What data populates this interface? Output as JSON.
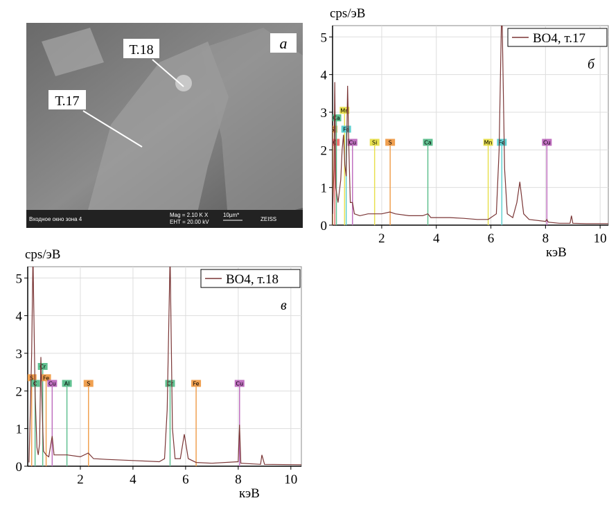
{
  "image": {
    "labels": [
      "Т.18",
      "Т.17"
    ],
    "panel": "а",
    "info": [
      "Входное окно зона 4",
      "Mag =  2.10 K X",
      "EHT = 20.00 kV",
      "10µm*",
      "ZEISS"
    ]
  },
  "chart_data": [
    {
      "type": "line",
      "panel": "б",
      "ylabel": "cps/эВ",
      "xlabel": "кэВ",
      "x": [
        0.2,
        0.25,
        0.28,
        0.32,
        0.4,
        0.5,
        0.55,
        0.6,
        0.65,
        0.7,
        0.75,
        0.8,
        0.85,
        0.93,
        1.0,
        1.2,
        1.5,
        2.0,
        2.3,
        2.5,
        3.0,
        3.5,
        3.69,
        3.8,
        4.5,
        5.0,
        5.5,
        5.9,
        6.2,
        6.3,
        6.4,
        6.5,
        6.6,
        6.8,
        6.95,
        7.06,
        7.2,
        7.4,
        8.0,
        8.05,
        8.1,
        8.5,
        8.9,
        8.95,
        9.0,
        9.5,
        10.3
      ],
      "series": [
        {
          "name": "ВО4, т.17",
          "color": "#7a3535",
          "values": [
            0.3,
            1.5,
            3.8,
            1.0,
            0.6,
            1.2,
            2.0,
            2.4,
            1.6,
            1.3,
            3.7,
            2.0,
            0.6,
            0.6,
            0.3,
            0.25,
            0.3,
            0.3,
            0.35,
            0.3,
            0.25,
            0.25,
            0.3,
            0.2,
            0.2,
            0.18,
            0.15,
            0.15,
            0.3,
            2.0,
            6.0,
            1.5,
            0.3,
            0.2,
            0.6,
            1.15,
            0.3,
            0.15,
            0.1,
            0.15,
            0.08,
            0.05,
            0.05,
            0.25,
            0.05,
            0.04,
            0.04
          ]
        }
      ],
      "markers": [
        {
          "label": "S",
          "x": 0.2,
          "height": 2.55,
          "color": "#f0a050"
        },
        {
          "label": "C",
          "x": 0.28,
          "height": 2.2,
          "color": "#f07070"
        },
        {
          "label": "Ca",
          "x": 0.34,
          "height": 2.85,
          "color": "#60c090"
        },
        {
          "label": "Mn",
          "x": 0.64,
          "height": 3.05,
          "color": "#e8e050"
        },
        {
          "label": "Fe",
          "x": 0.7,
          "height": 2.55,
          "color": "#60d0d0"
        },
        {
          "label": "Cu",
          "x": 0.93,
          "height": 2.2,
          "color": "#c070c0"
        },
        {
          "label": "Si",
          "x": 1.74,
          "height": 2.2,
          "color": "#e8e050"
        },
        {
          "label": "S",
          "x": 2.31,
          "height": 2.2,
          "color": "#f0a050"
        },
        {
          "label": "Ca",
          "x": 3.69,
          "height": 2.2,
          "color": "#60c090"
        },
        {
          "label": "Mn",
          "x": 5.9,
          "height": 2.2,
          "color": "#e8e050"
        },
        {
          "label": "Fe",
          "x": 6.4,
          "height": 2.2,
          "color": "#60d0d0"
        },
        {
          "label": "Cu",
          "x": 8.05,
          "height": 2.2,
          "color": "#c070c0"
        }
      ],
      "xlim": [
        0.2,
        10.3
      ],
      "xticks": [
        2,
        4,
        6,
        8,
        10
      ],
      "ylim": [
        0,
        5.3
      ],
      "yticks": [
        0,
        1,
        2,
        3,
        4,
        5
      ],
      "grid": true
    },
    {
      "type": "line",
      "panel": "в",
      "ylabel": "cps/эВ",
      "xlabel": "кэВ",
      "x": [
        0.05,
        0.1,
        0.15,
        0.2,
        0.28,
        0.35,
        0.4,
        0.45,
        0.5,
        0.55,
        0.6,
        0.7,
        0.8,
        0.93,
        1.0,
        1.2,
        1.5,
        2.0,
        2.3,
        2.5,
        3.0,
        4.0,
        5.0,
        5.2,
        5.3,
        5.41,
        5.5,
        5.6,
        5.8,
        5.95,
        6.1,
        6.4,
        7.0,
        8.0,
        8.05,
        8.1,
        8.85,
        8.9,
        9.0,
        10.4
      ],
      "series": [
        {
          "name": "ВО4, т.18",
          "color": "#7a3535",
          "values": [
            0.1,
            1.5,
            3.0,
            5.6,
            2.0,
            0.5,
            0.3,
            0.6,
            2.9,
            1.5,
            0.4,
            0.3,
            0.25,
            0.8,
            0.3,
            0.3,
            0.3,
            0.25,
            0.35,
            0.2,
            0.18,
            0.15,
            0.12,
            0.2,
            1.5,
            5.6,
            1.0,
            0.2,
            0.2,
            0.85,
            0.2,
            0.1,
            0.08,
            0.12,
            1.1,
            0.08,
            0.05,
            0.3,
            0.05,
            0.04
          ]
        }
      ],
      "markers": [
        {
          "label": "S",
          "x": 0.15,
          "height": 2.35,
          "color": "#f0a050"
        },
        {
          "label": "C",
          "x": 0.28,
          "height": 2.2,
          "color": "#60c090"
        },
        {
          "label": "Cr",
          "x": 0.57,
          "height": 2.65,
          "color": "#60c090"
        },
        {
          "label": "Fe",
          "x": 0.7,
          "height": 2.35,
          "color": "#f0a050"
        },
        {
          "label": "Cu",
          "x": 0.93,
          "height": 2.2,
          "color": "#c070c0"
        },
        {
          "label": "Al",
          "x": 1.49,
          "height": 2.2,
          "color": "#60c090"
        },
        {
          "label": "S",
          "x": 2.31,
          "height": 2.2,
          "color": "#f0a050"
        },
        {
          "label": "Cr",
          "x": 5.41,
          "height": 2.2,
          "color": "#60c090"
        },
        {
          "label": "Fe",
          "x": 6.4,
          "height": 2.2,
          "color": "#f0a050"
        },
        {
          "label": "Cu",
          "x": 8.05,
          "height": 2.2,
          "color": "#c070c0"
        }
      ],
      "xlim": [
        0,
        10.4
      ],
      "xticks": [
        2,
        4,
        6,
        8,
        10
      ],
      "ylim": [
        0,
        5.3
      ],
      "yticks": [
        0,
        1,
        2,
        3,
        4,
        5
      ],
      "grid": true
    }
  ]
}
